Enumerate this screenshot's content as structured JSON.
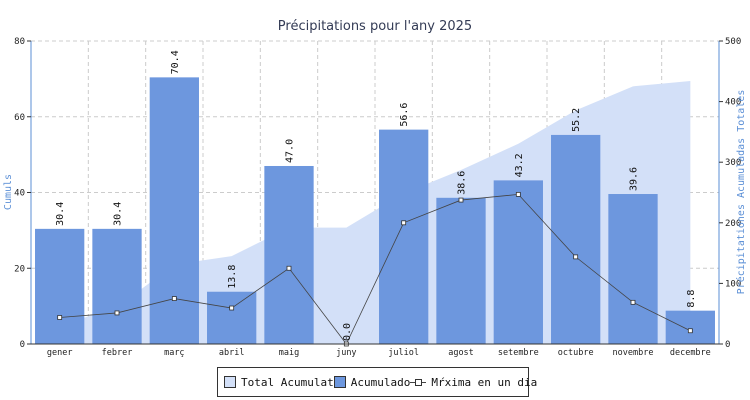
{
  "chart_data": {
    "type": "bar",
    "title": "Précipitations pour l'any 2025",
    "categories": [
      "gener",
      "febrer",
      "març",
      "abril",
      "maig",
      "juny",
      "juliol",
      "agost",
      "setembre",
      "octubre",
      "novembre",
      "decembre"
    ],
    "y_left": {
      "label": "Cumuls",
      "range": [
        0,
        80
      ],
      "ticks": [
        0,
        20,
        40,
        60,
        80
      ]
    },
    "y_right": {
      "label": "Précipitationes Acumuladas Totales",
      "range": [
        0,
        500
      ],
      "ticks": [
        0,
        100,
        200,
        300,
        400,
        500
      ]
    },
    "series": [
      {
        "name": "Total Acumulat",
        "type": "area",
        "axis": "right",
        "values": [
          30.4,
          60.8,
          131.2,
          145.0,
          192.0,
          192.0,
          248.6,
          287.2,
          330.4,
          385.6,
          425.2,
          434.0
        ]
      },
      {
        "name": "Acumulado",
        "type": "bar",
        "axis": "left",
        "values": [
          30.4,
          30.4,
          70.4,
          13.8,
          47.0,
          0.0,
          56.6,
          38.6,
          43.2,
          55.2,
          39.6,
          8.8
        ],
        "labels": [
          "30.4",
          "30.4",
          "70.4",
          "13.8",
          "47.0",
          "0.0",
          "56.6",
          "38.6",
          "43.2",
          "55.2",
          "39.6",
          "8.8"
        ]
      },
      {
        "name": "Mŕxima en un dia",
        "type": "line",
        "axis": "left",
        "values": [
          7.0,
          8.2,
          12.0,
          9.5,
          20.0,
          0.0,
          32.0,
          38.0,
          39.5,
          23.0,
          11.0,
          3.5
        ]
      }
    ],
    "colors": {
      "total": "#d3e0f8",
      "acumulado": "#6d97de",
      "line": "#444444",
      "axis_label": "#5b8fd6",
      "grid": "#cccccc"
    },
    "grid": true,
    "legend_position": "bottom"
  }
}
